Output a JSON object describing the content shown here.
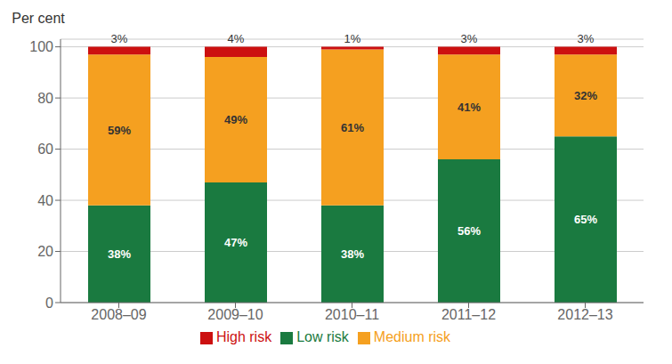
{
  "chart_data": {
    "type": "bar",
    "stacked": true,
    "y_label": "Per cent",
    "categories": [
      "2008–09",
      "2009–10",
      "2010–11",
      "2011–12",
      "2012–13"
    ],
    "series": [
      {
        "name": "Low risk",
        "color": "#1a7a40",
        "values": [
          38,
          47,
          38,
          56,
          65
        ],
        "value_labels": [
          "38%",
          "47%",
          "38%",
          "56%",
          "65%"
        ]
      },
      {
        "name": "Medium risk",
        "color": "#f5a020",
        "values": [
          59,
          49,
          61,
          41,
          32
        ],
        "value_labels": [
          "59%",
          "49%",
          "61%",
          "41%",
          "32%"
        ]
      },
      {
        "name": "High risk",
        "color": "#cc1010",
        "values": [
          3,
          4,
          1,
          3,
          3
        ],
        "value_labels": [
          "3%",
          "4%",
          "1%",
          "3%",
          "3%"
        ]
      }
    ],
    "ylim": [
      0,
      103
    ],
    "yticks": [
      0,
      20,
      40,
      60,
      80,
      100
    ],
    "grid": true,
    "legend": "bottom",
    "data_labels": true
  }
}
